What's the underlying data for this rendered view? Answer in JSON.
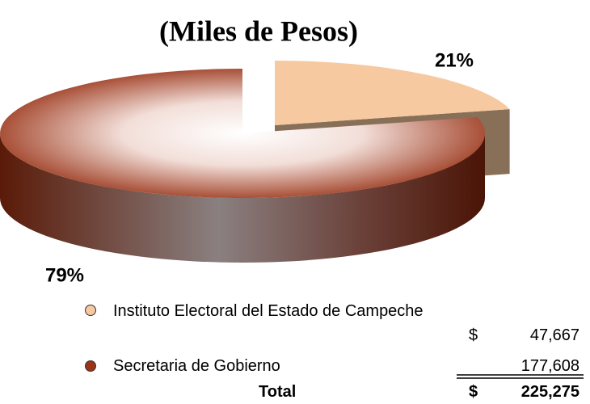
{
  "chart_data": {
    "type": "pie",
    "title": "(Miles de Pesos)",
    "categories": [
      "Instituto Electoral del Estado de Campeche",
      "Secretaria de Gobierno"
    ],
    "values": [
      21,
      79
    ],
    "value_labels": [
      "21%",
      "79%"
    ],
    "colors": [
      "#f7c9a0",
      "#9a3418"
    ],
    "table": {
      "currency": "$",
      "amounts": [
        "47,667",
        "177,608"
      ],
      "total_label": "Total",
      "total": "225,275"
    }
  }
}
